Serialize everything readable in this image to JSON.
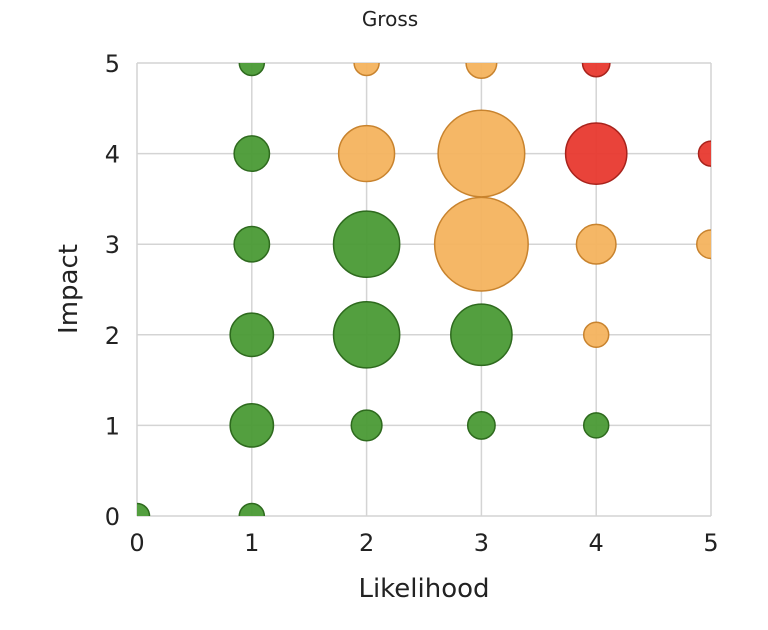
{
  "chart_data": {
    "type": "scatter",
    "title": "Gross",
    "xlabel": "Likelihood",
    "ylabel": "Impact",
    "xlim": [
      0,
      5
    ],
    "ylim": [
      0,
      5
    ],
    "xticks": [
      "0",
      "1",
      "2",
      "3",
      "4",
      "5"
    ],
    "yticks": [
      "0",
      "1",
      "2",
      "3",
      "4",
      "5"
    ],
    "grid": true,
    "legend": "none",
    "colors": {
      "green": {
        "fill": "#4a9a35",
        "stroke": "#2e6a1e"
      },
      "orange": {
        "fill": "#f4b35e",
        "stroke": "#c8832e"
      },
      "red": {
        "fill": "#e8392f",
        "stroke": "#a8231c"
      }
    },
    "points": [
      {
        "x": 0,
        "y": 0,
        "size": 1,
        "color": "green"
      },
      {
        "x": 1,
        "y": 0,
        "size": 1,
        "color": "green"
      },
      {
        "x": 1,
        "y": 1,
        "size": 3,
        "color": "green"
      },
      {
        "x": 1,
        "y": 2,
        "size": 3,
        "color": "green"
      },
      {
        "x": 1,
        "y": 3,
        "size": 2,
        "color": "green"
      },
      {
        "x": 1,
        "y": 4,
        "size": 2,
        "color": "green"
      },
      {
        "x": 1,
        "y": 5,
        "size": 1,
        "color": "green"
      },
      {
        "x": 2,
        "y": 1,
        "size": 1.5,
        "color": "green"
      },
      {
        "x": 2,
        "y": 2,
        "size": 7,
        "color": "green"
      },
      {
        "x": 2,
        "y": 3,
        "size": 7,
        "color": "green"
      },
      {
        "x": 2,
        "y": 4,
        "size": 5,
        "color": "orange"
      },
      {
        "x": 2,
        "y": 5,
        "size": 1,
        "color": "orange"
      },
      {
        "x": 3,
        "y": 1,
        "size": 1.2,
        "color": "green"
      },
      {
        "x": 3,
        "y": 2,
        "size": 6,
        "color": "green"
      },
      {
        "x": 3,
        "y": 3,
        "size": 14,
        "color": "orange"
      },
      {
        "x": 3,
        "y": 4,
        "size": 12,
        "color": "orange"
      },
      {
        "x": 3,
        "y": 5,
        "size": 1.5,
        "color": "orange"
      },
      {
        "x": 4,
        "y": 1,
        "size": 1,
        "color": "green"
      },
      {
        "x": 4,
        "y": 2,
        "size": 1,
        "color": "orange"
      },
      {
        "x": 4,
        "y": 3,
        "size": 2.5,
        "color": "orange"
      },
      {
        "x": 4,
        "y": 4,
        "size": 6,
        "color": "red"
      },
      {
        "x": 4,
        "y": 5,
        "size": 1.2,
        "color": "red"
      },
      {
        "x": 5,
        "y": 3,
        "size": 1.3,
        "color": "orange"
      },
      {
        "x": 5,
        "y": 4,
        "size": 1,
        "color": "red"
      }
    ]
  }
}
